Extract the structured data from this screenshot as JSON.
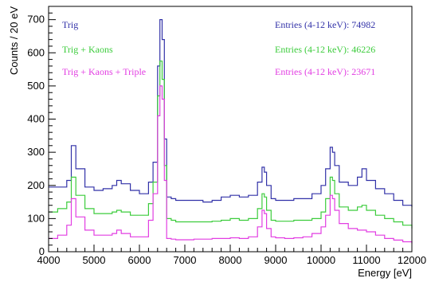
{
  "chart_data": {
    "type": "line",
    "xlabel": "Energy [eV]",
    "ylabel": "Counts / 20 eV",
    "xlim": [
      4000,
      12000
    ],
    "ylim": [
      0,
      740
    ],
    "x_ticks": [
      4000,
      5000,
      6000,
      7000,
      8000,
      9000,
      10000,
      11000,
      12000
    ],
    "y_ticks": [
      0,
      100,
      200,
      300,
      400,
      500,
      600,
      700
    ],
    "grid": false,
    "x": [
      4000,
      4200,
      4400,
      4500,
      4600,
      4800,
      5000,
      5200,
      5400,
      5500,
      5600,
      5800,
      6000,
      6200,
      6300,
      6400,
      6450,
      6500,
      6550,
      6600,
      6700,
      6800,
      7000,
      7200,
      7400,
      7600,
      7800,
      8000,
      8200,
      8400,
      8600,
      8700,
      8750,
      8800,
      8900,
      9000,
      9200,
      9400,
      9600,
      9800,
      10000,
      10100,
      10200,
      10250,
      10300,
      10400,
      10600,
      10800,
      10900,
      11000,
      11200,
      11400,
      11600,
      11800,
      12000
    ],
    "series": [
      {
        "name": "Trig",
        "color": "#3232a8",
        "entries_label": "Entries (4-12 keV): 74982",
        "values": [
          195,
          195,
          215,
          320,
          250,
          195,
          185,
          190,
          200,
          215,
          205,
          185,
          175,
          210,
          270,
          560,
          700,
          640,
          340,
          165,
          160,
          155,
          155,
          155,
          150,
          155,
          165,
          170,
          165,
          170,
          210,
          255,
          240,
          200,
          160,
          155,
          155,
          160,
          160,
          175,
          200,
          250,
          315,
          300,
          260,
          210,
          200,
          225,
          250,
          215,
          190,
          175,
          155,
          140,
          135
        ]
      },
      {
        "name": "Trig + Kaons",
        "color": "#3ccc3c",
        "entries_label": "Entries (4-12 keV): 46226",
        "values": [
          120,
          130,
          150,
          225,
          170,
          130,
          115,
          115,
          120,
          125,
          120,
          110,
          110,
          145,
          210,
          470,
          575,
          520,
          260,
          100,
          95,
          90,
          90,
          90,
          90,
          92,
          95,
          100,
          95,
          100,
          130,
          175,
          165,
          125,
          95,
          92,
          92,
          95,
          95,
          100,
          120,
          160,
          225,
          215,
          175,
          135,
          125,
          135,
          140,
          125,
          110,
          100,
          90,
          80,
          70
        ]
      },
      {
        "name": "Trig + Kaons + Triple",
        "color": "#e23ee2",
        "entries_label": "Entries (4-12 keV): 23671",
        "values": [
          40,
          50,
          80,
          160,
          105,
          65,
          50,
          50,
          55,
          65,
          55,
          45,
          45,
          95,
          175,
          410,
          500,
          460,
          215,
          40,
          38,
          36,
          36,
          38,
          38,
          40,
          40,
          42,
          40,
          45,
          75,
          125,
          115,
          70,
          45,
          42,
          40,
          42,
          45,
          55,
          75,
          110,
          170,
          160,
          125,
          85,
          70,
          65,
          65,
          60,
          50,
          40,
          35,
          30,
          25
        ]
      }
    ]
  }
}
